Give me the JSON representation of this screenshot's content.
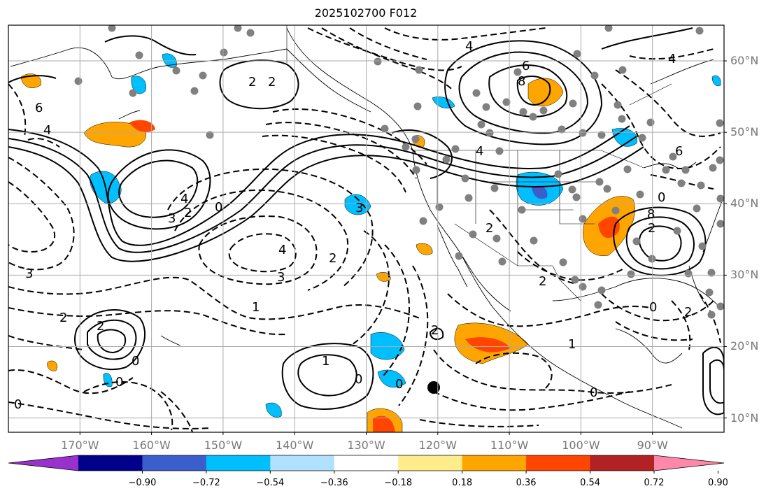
{
  "title": "2025102700 F012",
  "lat_labels": [
    {
      "text": "60°N",
      "lat": 60
    },
    {
      "text": "50°N",
      "lat": 50
    },
    {
      "text": "40°N",
      "lat": 40
    },
    {
      "text": "30°N",
      "lat": 30
    },
    {
      "text": "20°N",
      "lat": 20
    },
    {
      "text": "10°N",
      "lat": 10
    }
  ],
  "lon_labels": [
    {
      "text": "170°W",
      "lon": -170
    },
    {
      "text": "160°W",
      "lon": -160
    },
    {
      "text": "150°W",
      "lon": -150
    },
    {
      "text": "140°W",
      "lon": -140
    },
    {
      "text": "130°W",
      "lon": -130
    },
    {
      "text": "120°W",
      "lon": -120
    },
    {
      "text": "110°W",
      "lon": -110
    },
    {
      "text": "100°W",
      "lon": -100
    },
    {
      "text": "90°W",
      "lon": -90
    }
  ],
  "extent": {
    "lon_min": -180,
    "lon_max": -80,
    "lat_min": 8,
    "lat_max": 65
  },
  "colorbar": {
    "colors": [
      "#9932cc",
      "#00008b",
      "#3a5fcd",
      "#00bfff",
      "#b0e2ff",
      "#ffffff",
      "#ffec8b",
      "#ffa500",
      "#ff4500",
      "#b22222",
      "#ff88aa"
    ],
    "labels": [
      "−0.90",
      "−0.72",
      "−0.54",
      "−0.36",
      "−0.18",
      "0.18",
      "0.36",
      "0.54",
      "0.72",
      "0.90"
    ]
  },
  "contour_labels": [
    "2",
    "2",
    "6",
    "4",
    "4",
    "4",
    "3",
    "2",
    "0",
    "4",
    "3",
    "2",
    "3",
    "3",
    "1",
    "2",
    "2",
    "0",
    "0",
    "0",
    "1",
    "0",
    "0",
    "2",
    "1",
    "8",
    "6",
    "2",
    "4",
    "8",
    "2",
    "4",
    "0",
    "2",
    "6",
    "2",
    "0",
    "0"
  ],
  "station_marker": {
    "label": "black dot",
    "lon": -120,
    "lat": 14
  }
}
